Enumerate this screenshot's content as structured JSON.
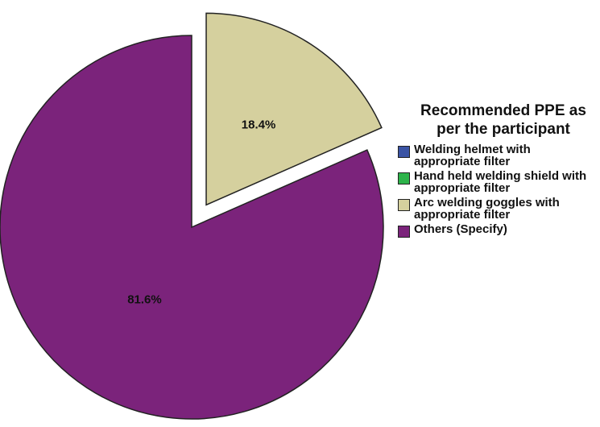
{
  "chart_data": {
    "type": "pie",
    "legend": {
      "title": "Recommended PPE as per the participant",
      "position": "right"
    },
    "slices": [
      {
        "label": "Welding helmet with appropriate filter",
        "value": 0,
        "color": "#3a53a4",
        "display": ""
      },
      {
        "label": "Hand held welding shield with appropriate filter",
        "value": 0,
        "color": "#2db34a",
        "display": ""
      },
      {
        "label": "Arc welding goggles with appropriate filter",
        "value": 18.4,
        "color": "#d5d09e",
        "display": "18.4%",
        "exploded": true
      },
      {
        "label": "Others (Specify)",
        "value": 81.6,
        "color": "#7b237b",
        "display": "81.6%"
      }
    ]
  }
}
